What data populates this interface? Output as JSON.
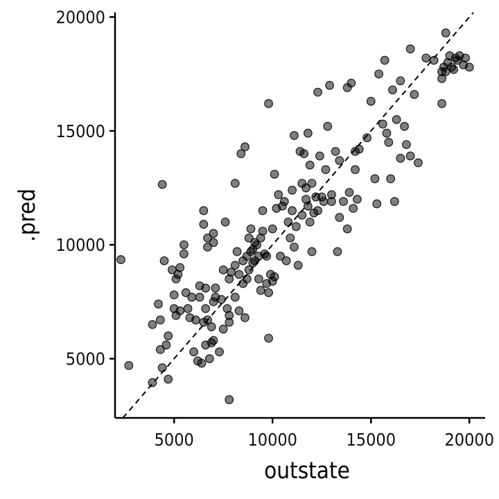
{
  "chart_data": {
    "type": "scatter",
    "title": "",
    "xlabel": "outstate",
    "ylabel": ".pred",
    "xlim": [
      2000,
      20800
    ],
    "ylim": [
      2400,
      20200
    ],
    "x_ticks": [
      5000,
      10000,
      15000,
      20000
    ],
    "y_ticks": [
      5000,
      10000,
      15000,
      20000
    ],
    "x_tick_labels": [
      "5000",
      "10000",
      "15000",
      "20000"
    ],
    "y_tick_labels": [
      "5000",
      "10000",
      "15000",
      "20000"
    ],
    "grid": false,
    "reference_line": {
      "style": "dashed",
      "slope": 1,
      "intercept": 0
    },
    "point_color": "#000000",
    "point_opacity": 0.5,
    "points": [
      [
        2300,
        9350
      ],
      [
        2700,
        4700
      ],
      [
        3900,
        6500
      ],
      [
        3900,
        3950
      ],
      [
        4200,
        7400
      ],
      [
        4300,
        5400
      ],
      [
        4300,
        6700
      ],
      [
        4400,
        4600
      ],
      [
        4400,
        12650
      ],
      [
        4500,
        9300
      ],
      [
        4600,
        5600
      ],
      [
        4700,
        4100
      ],
      [
        4700,
        6000
      ],
      [
        4900,
        8900
      ],
      [
        5000,
        7200
      ],
      [
        5000,
        7800
      ],
      [
        5100,
        6900
      ],
      [
        5100,
        8500
      ],
      [
        5200,
        8700
      ],
      [
        5300,
        7100
      ],
      [
        5300,
        9000
      ],
      [
        5500,
        9600
      ],
      [
        5500,
        10000
      ],
      [
        5600,
        7900
      ],
      [
        5700,
        7200
      ],
      [
        5800,
        6800
      ],
      [
        5900,
        7700
      ],
      [
        6000,
        5300
      ],
      [
        6100,
        6700
      ],
      [
        6200,
        4900
      ],
      [
        6300,
        8200
      ],
      [
        6300,
        7700
      ],
      [
        6400,
        4800
      ],
      [
        6500,
        6600
      ],
      [
        6500,
        10900
      ],
      [
        6500,
        11500
      ],
      [
        6600,
        5600
      ],
      [
        6600,
        7200
      ],
      [
        6600,
        8100
      ],
      [
        6700,
        6700
      ],
      [
        6700,
        9900
      ],
      [
        6700,
        10300
      ],
      [
        6800,
        5000
      ],
      [
        6900,
        5700
      ],
      [
        6900,
        6400
      ],
      [
        7000,
        5800
      ],
      [
        7000,
        7500
      ],
      [
        7000,
        10100
      ],
      [
        7000,
        10500
      ],
      [
        7100,
        7700
      ],
      [
        7100,
        8100
      ],
      [
        7300,
        5300
      ],
      [
        7400,
        7600
      ],
      [
        7500,
        6300
      ],
      [
        7500,
        8900
      ],
      [
        7600,
        11000
      ],
      [
        7700,
        7200
      ],
      [
        7800,
        6600
      ],
      [
        7800,
        8500
      ],
      [
        7800,
        3200
      ],
      [
        7800,
        6900
      ],
      [
        7900,
        8800
      ],
      [
        8100,
        9100
      ],
      [
        8100,
        7700
      ],
      [
        8100,
        12700
      ],
      [
        8200,
        9700
      ],
      [
        8300,
        8700
      ],
      [
        8300,
        7100
      ],
      [
        8400,
        14000
      ],
      [
        8500,
        8300
      ],
      [
        8500,
        9300
      ],
      [
        8600,
        14300
      ],
      [
        8600,
        6800
      ],
      [
        8700,
        8500
      ],
      [
        8700,
        9500
      ],
      [
        8800,
        10300
      ],
      [
        8800,
        8900
      ],
      [
        8900,
        9700
      ],
      [
        8900,
        10700
      ],
      [
        9000,
        9200
      ],
      [
        9000,
        9800
      ],
      [
        9100,
        9300
      ],
      [
        9100,
        10100
      ],
      [
        9200,
        10000
      ],
      [
        9300,
        9500
      ],
      [
        9300,
        8500
      ],
      [
        9400,
        10300
      ],
      [
        9400,
        8000
      ],
      [
        9500,
        11500
      ],
      [
        9500,
        10600
      ],
      [
        9600,
        9600
      ],
      [
        9700,
        8300
      ],
      [
        9700,
        9500
      ],
      [
        9800,
        7900
      ],
      [
        9800,
        5900
      ],
      [
        9800,
        16200
      ],
      [
        9900,
        8700
      ],
      [
        10000,
        10700
      ],
      [
        10000,
        8400
      ],
      [
        10100,
        8600
      ],
      [
        10100,
        13100
      ],
      [
        10200,
        11600
      ],
      [
        10300,
        12200
      ],
      [
        10400,
        9500
      ],
      [
        10500,
        11700
      ],
      [
        10600,
        11900
      ],
      [
        10700,
        9300
      ],
      [
        10800,
        11000
      ],
      [
        10900,
        10300
      ],
      [
        11000,
        12400
      ],
      [
        11000,
        11500
      ],
      [
        11100,
        14800
      ],
      [
        11100,
        9900
      ],
      [
        11200,
        10800
      ],
      [
        11300,
        9100
      ],
      [
        11400,
        14100
      ],
      [
        11500,
        12700
      ],
      [
        11500,
        11300
      ],
      [
        11600,
        14000
      ],
      [
        11700,
        12000
      ],
      [
        11700,
        12500
      ],
      [
        11800,
        11700
      ],
      [
        11800,
        14900
      ],
      [
        11900,
        11000
      ],
      [
        11900,
        13500
      ],
      [
        12000,
        12700
      ],
      [
        12000,
        9700
      ],
      [
        12100,
        11400
      ],
      [
        12200,
        12100
      ],
      [
        12300,
        16700
      ],
      [
        12300,
        11500
      ],
      [
        12400,
        13900
      ],
      [
        12500,
        12100
      ],
      [
        12600,
        11900
      ],
      [
        12700,
        13300
      ],
      [
        12800,
        15200
      ],
      [
        12900,
        17000
      ],
      [
        13000,
        11900
      ],
      [
        13000,
        12200
      ],
      [
        13200,
        14100
      ],
      [
        13300,
        9700
      ],
      [
        13400,
        11200
      ],
      [
        13400,
        13700
      ],
      [
        13600,
        11900
      ],
      [
        13800,
        16900
      ],
      [
        13800,
        10700
      ],
      [
        13900,
        12300
      ],
      [
        14000,
        17100
      ],
      [
        14100,
        11600
      ],
      [
        14200,
        13300
      ],
      [
        14200,
        14100
      ],
      [
        14300,
        12000
      ],
      [
        14400,
        14200
      ],
      [
        14800,
        14700
      ],
      [
        15000,
        16300
      ],
      [
        15200,
        12900
      ],
      [
        15300,
        11800
      ],
      [
        15400,
        17500
      ],
      [
        15600,
        15300
      ],
      [
        15700,
        18100
      ],
      [
        15800,
        14900
      ],
      [
        15900,
        14500
      ],
      [
        16000,
        12900
      ],
      [
        16100,
        16800
      ],
      [
        16200,
        11900
      ],
      [
        16300,
        15500
      ],
      [
        16500,
        13800
      ],
      [
        16500,
        17200
      ],
      [
        16700,
        15200
      ],
      [
        16800,
        14400
      ],
      [
        17000,
        18600
      ],
      [
        17000,
        13900
      ],
      [
        17200,
        16600
      ],
      [
        17400,
        13600
      ],
      [
        17800,
        18200
      ],
      [
        18200,
        18100
      ],
      [
        18600,
        17600
      ],
      [
        18600,
        17300
      ],
      [
        18600,
        16200
      ],
      [
        18800,
        19300
      ],
      [
        18800,
        17600
      ],
      [
        18900,
        18000
      ],
      [
        19000,
        18300
      ],
      [
        19100,
        17800
      ],
      [
        19200,
        17700
      ],
      [
        19400,
        18100
      ],
      [
        19500,
        18300
      ],
      [
        19700,
        17900
      ],
      [
        19800,
        18200
      ],
      [
        20000,
        17800
      ],
      [
        18700,
        17800
      ],
      [
        19300,
        18200
      ]
    ]
  }
}
